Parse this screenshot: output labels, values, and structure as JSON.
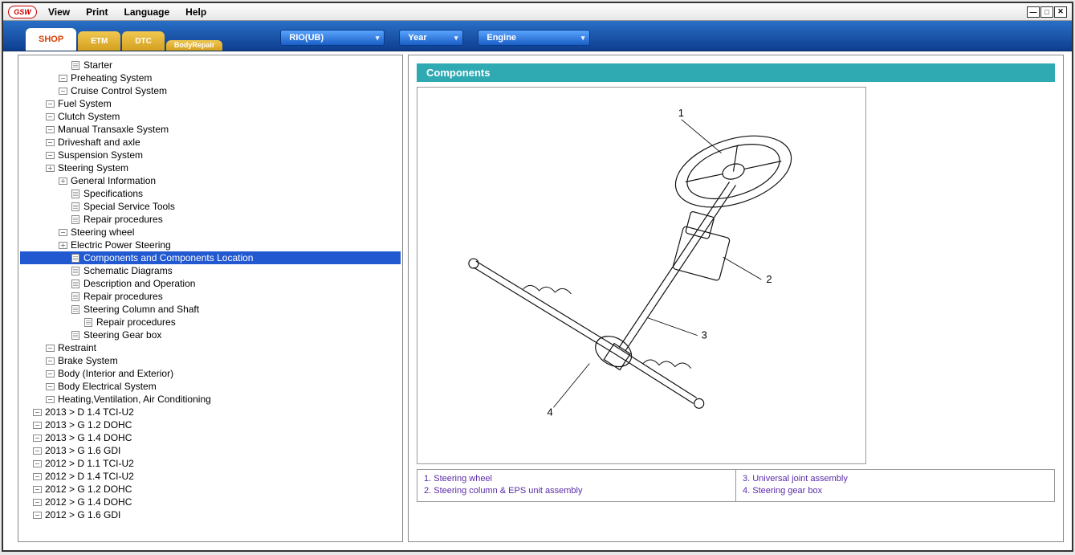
{
  "menubar": {
    "items": [
      "View",
      "Print",
      "Language",
      "Help"
    ],
    "logo": "GSW"
  },
  "tabs": {
    "active": "SHOP",
    "etm": "ETM",
    "dtc": "DTC",
    "body_repair_l1": "Body",
    "body_repair_l2": "Repair"
  },
  "dropdowns": {
    "model": "RIO(UB)",
    "year": "Year",
    "engine": "Engine"
  },
  "tree": {
    "L0": 38,
    "L1": 54,
    "L2": 70,
    "L3": 86,
    "L4": 102,
    "items": [
      {
        "depth": 4,
        "icon": "doc",
        "label": "Starter"
      },
      {
        "depth": 3,
        "icon": "minus",
        "label": "Preheating System"
      },
      {
        "depth": 3,
        "icon": "minus",
        "label": "Cruise Control System"
      },
      {
        "depth": 2,
        "icon": "minus",
        "label": "Fuel System"
      },
      {
        "depth": 2,
        "icon": "minus",
        "label": "Clutch System"
      },
      {
        "depth": 2,
        "icon": "minus",
        "label": "Manual Transaxle System"
      },
      {
        "depth": 2,
        "icon": "minus",
        "label": "Driveshaft and axle"
      },
      {
        "depth": 2,
        "icon": "minus",
        "label": "Suspension System"
      },
      {
        "depth": 2,
        "icon": "plus",
        "label": "Steering System"
      },
      {
        "depth": 3,
        "icon": "plus",
        "label": "General Information"
      },
      {
        "depth": 4,
        "icon": "doc",
        "label": "Specifications"
      },
      {
        "depth": 4,
        "icon": "doc",
        "label": "Special Service Tools"
      },
      {
        "depth": 4,
        "icon": "doc",
        "label": "Repair procedures"
      },
      {
        "depth": 3,
        "icon": "minus",
        "label": "Steering wheel"
      },
      {
        "depth": 3,
        "icon": "plus",
        "label": "Electric Power Steering"
      },
      {
        "depth": 4,
        "icon": "doc",
        "label": "Components and Components Location",
        "selected": true
      },
      {
        "depth": 4,
        "icon": "doc",
        "label": "Schematic Diagrams"
      },
      {
        "depth": 4,
        "icon": "doc",
        "label": "Description and Operation"
      },
      {
        "depth": 4,
        "icon": "doc",
        "label": "Repair procedures"
      },
      {
        "depth": 4,
        "icon": "doc",
        "label": "Steering Column and Shaft"
      },
      {
        "depth": 5,
        "icon": "doc",
        "label": "Repair procedures"
      },
      {
        "depth": 4,
        "icon": "doc",
        "label": "Steering Gear box"
      },
      {
        "depth": 2,
        "icon": "minus",
        "label": "Restraint"
      },
      {
        "depth": 2,
        "icon": "minus",
        "label": "Brake System"
      },
      {
        "depth": 2,
        "icon": "minus",
        "label": "Body (Interior and Exterior)"
      },
      {
        "depth": 2,
        "icon": "minus",
        "label": "Body Electrical System"
      },
      {
        "depth": 2,
        "icon": "minus",
        "label": "Heating,Ventilation, Air Conditioning"
      },
      {
        "depth": 1,
        "icon": "minus",
        "label": "2013 > D 1.4 TCI-U2"
      },
      {
        "depth": 1,
        "icon": "minus",
        "label": "2013 > G 1.2 DOHC"
      },
      {
        "depth": 1,
        "icon": "minus",
        "label": "2013 > G 1.4 DOHC"
      },
      {
        "depth": 1,
        "icon": "minus",
        "label": "2013 > G 1.6 GDI"
      },
      {
        "depth": 1,
        "icon": "minus",
        "label": "2012 > D 1.1 TCI-U2"
      },
      {
        "depth": 1,
        "icon": "minus",
        "label": "2012 > D 1.4 TCI-U2"
      },
      {
        "depth": 1,
        "icon": "minus",
        "label": "2012 > G 1.2 DOHC"
      },
      {
        "depth": 1,
        "icon": "minus",
        "label": "2012 > G 1.4 DOHC"
      },
      {
        "depth": 1,
        "icon": "minus",
        "label": "2012 > G 1.6 GDI"
      }
    ]
  },
  "content": {
    "header": "Components",
    "legend": {
      "col1_l1": "1. Steering wheel",
      "col1_l2": "2. Steering column & EPS unit assembly",
      "col2_l1": "3. Universal joint assembly",
      "col2_l2": "4. Steering gear box"
    },
    "callouts": [
      "1",
      "2",
      "3",
      "4"
    ]
  },
  "colors": {
    "header_bar": "#2faab3",
    "toolbar_top": "#2a6fc7",
    "toolbar_bottom": "#0d3e8f",
    "active_tab_text": "#d94000",
    "inactive_tab_bg": "#d4a020",
    "selection": "#2259d0",
    "legend_text": "#5a2ba8"
  }
}
